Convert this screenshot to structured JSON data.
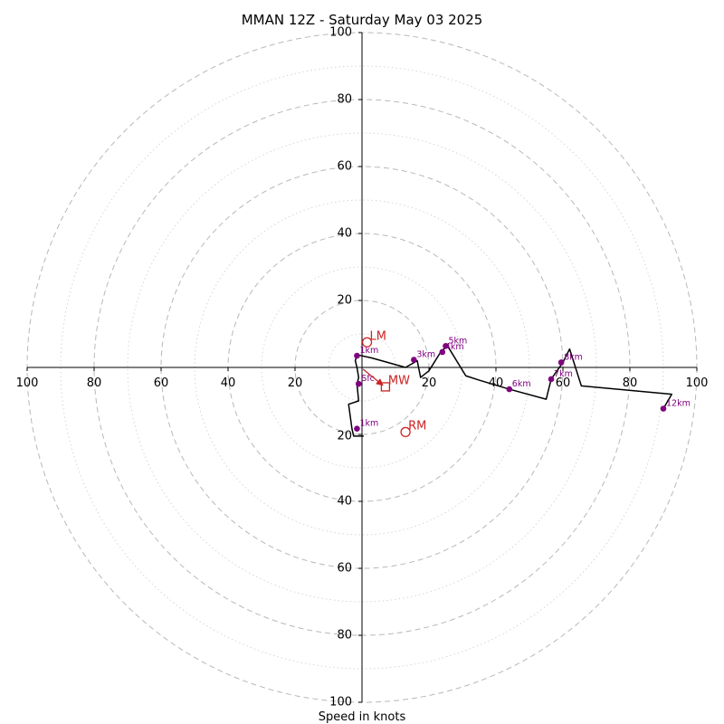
{
  "chart_data": {
    "type": "line",
    "title": "MMAN 12Z - Saturday May 03 2025",
    "xlabel": "Speed in knots",
    "ylabel": "",
    "xlim": [
      -100,
      100
    ],
    "ylim": [
      -100,
      100
    ],
    "ring_labels": [
      "20",
      "40",
      "60",
      "80",
      "100"
    ],
    "x_tick_labels": [
      {
        "value": -100,
        "label": "100"
      },
      {
        "value": -80,
        "label": "80"
      },
      {
        "value": -60,
        "label": "60"
      },
      {
        "value": -40,
        "label": "40"
      },
      {
        "value": -20,
        "label": "20"
      },
      {
        "value": 20,
        "label": "20"
      },
      {
        "value": 40,
        "label": "40"
      },
      {
        "value": 60,
        "label": "60"
      },
      {
        "value": 80,
        "label": "80"
      },
      {
        "value": 100,
        "label": "100"
      }
    ],
    "y_tick_labels": [
      {
        "value": 100,
        "label": "100"
      },
      {
        "value": 80,
        "label": "80"
      },
      {
        "value": 60,
        "label": "60"
      },
      {
        "value": 40,
        "label": "40"
      },
      {
        "value": 20,
        "label": "20"
      },
      {
        "value": -20,
        "label": "20"
      },
      {
        "value": -40,
        "label": "40"
      },
      {
        "value": -60,
        "label": "60"
      },
      {
        "value": -80,
        "label": "80"
      },
      {
        "value": -100,
        "label": "100"
      }
    ],
    "grid": {
      "major_ring_step": 20,
      "minor_ring_step": 10
    },
    "hodograph_line": {
      "color": "#000000",
      "points": [
        [
          0.5,
          -20.5
        ],
        [
          -2.5,
          -20.5
        ],
        [
          -3,
          -18.3
        ],
        [
          -4,
          -11
        ],
        [
          -1,
          -10
        ],
        [
          -1.5,
          -5
        ],
        [
          -1,
          -3
        ],
        [
          -1.5,
          0
        ],
        [
          -2,
          2
        ],
        [
          -1.5,
          3.8
        ],
        [
          3,
          2.8
        ],
        [
          13,
          0
        ],
        [
          16.5,
          2
        ],
        [
          17.5,
          -3
        ],
        [
          20,
          -1
        ],
        [
          23.5,
          4.6
        ],
        [
          25.5,
          6.5
        ],
        [
          31,
          -2.5
        ],
        [
          35,
          -3.8
        ],
        [
          44,
          -6.5
        ],
        [
          55,
          -9.5
        ],
        [
          56.5,
          -3.5
        ],
        [
          60,
          1.5
        ],
        [
          62,
          5.5
        ],
        [
          65.5,
          -5.5
        ],
        [
          92.5,
          -8
        ],
        [
          90,
          -12.3
        ]
      ]
    },
    "height_markers": {
      "color": "#800080",
      "points": [
        {
          "x": -1.5,
          "y": 3.5,
          "label": "1km"
        },
        {
          "x": -1,
          "y": -4.9,
          "label": "Sfc"
        },
        {
          "x": -1.5,
          "y": -18.3,
          "label": "1km"
        },
        {
          "x": 15.5,
          "y": 2.3,
          "label": "3km"
        },
        {
          "x": 24,
          "y": 4.6,
          "label": "4km"
        },
        {
          "x": 25,
          "y": 6.4,
          "label": "5km"
        },
        {
          "x": 44,
          "y": -6.5,
          "label": "6km"
        },
        {
          "x": 56.5,
          "y": -3.5,
          "label": "7km"
        },
        {
          "x": 59.5,
          "y": 1.5,
          "label": "8km"
        },
        {
          "x": 90,
          "y": -12.3,
          "label": "12km"
        }
      ]
    },
    "storm_motion": {
      "color": "#cc2222",
      "markers": [
        {
          "x": 1.5,
          "y": 7.5,
          "label": "LM",
          "shape": "circle"
        },
        {
          "x": 7,
          "y": -5.8,
          "label": "MW",
          "shape": "square"
        },
        {
          "x": 13,
          "y": -19.3,
          "label": "RM",
          "shape": "circle"
        }
      ],
      "shear_arrow": {
        "from": [
          0.3,
          -0.5
        ],
        "to": [
          6.2,
          -5.3
        ]
      }
    }
  }
}
